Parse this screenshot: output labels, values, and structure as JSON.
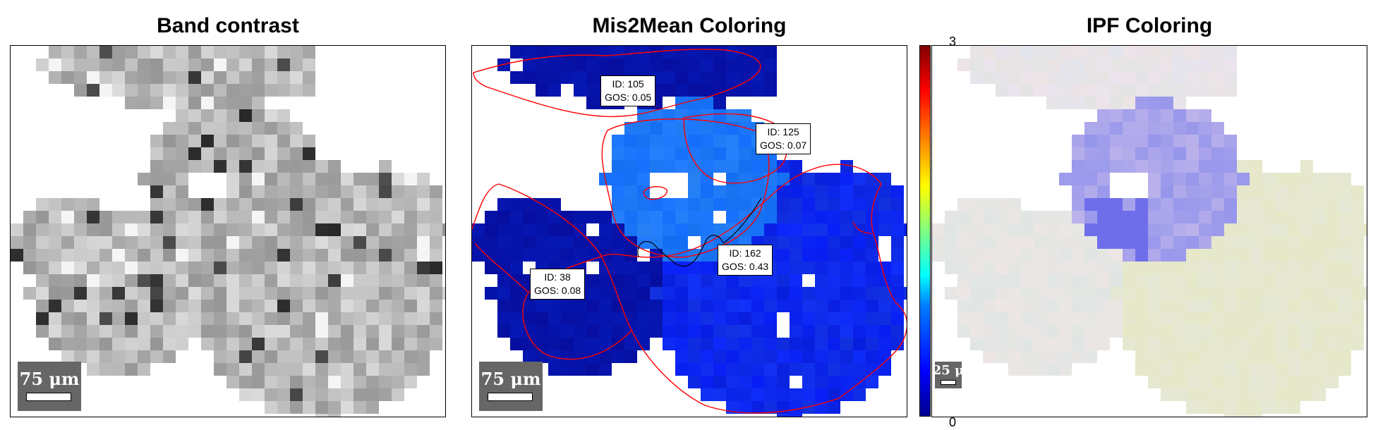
{
  "panels": [
    {
      "title": "Band contrast",
      "scalebar": "75 μm"
    },
    {
      "title": "Mis2Mean Coloring",
      "scalebar": "75 μm"
    },
    {
      "title": "IPF Coloring",
      "scalebar": "25 μ"
    }
  ],
  "grains": [
    {
      "id": "ID: 105",
      "gos": "GOS: 0.05"
    },
    {
      "id": "ID: 125",
      "gos": "GOS: 0.07"
    },
    {
      "id": "ID: 38",
      "gos": "GOS: 0.08"
    },
    {
      "id": "ID: 162",
      "gos": "GOS: 0.43"
    }
  ],
  "colorbar": {
    "top_tick": "3",
    "bottom_tick": "0",
    "colors": [
      "#00008f",
      "#0000ff",
      "#00ffff",
      "#ffff00",
      "#ff0000",
      "#800000"
    ]
  },
  "colors": {
    "grain_dark_blue": "#0a14b4",
    "grain_light_blue": "#1e78ff",
    "grain_mid_blue": "#0a28e6",
    "boundary": "#ff0000"
  }
}
